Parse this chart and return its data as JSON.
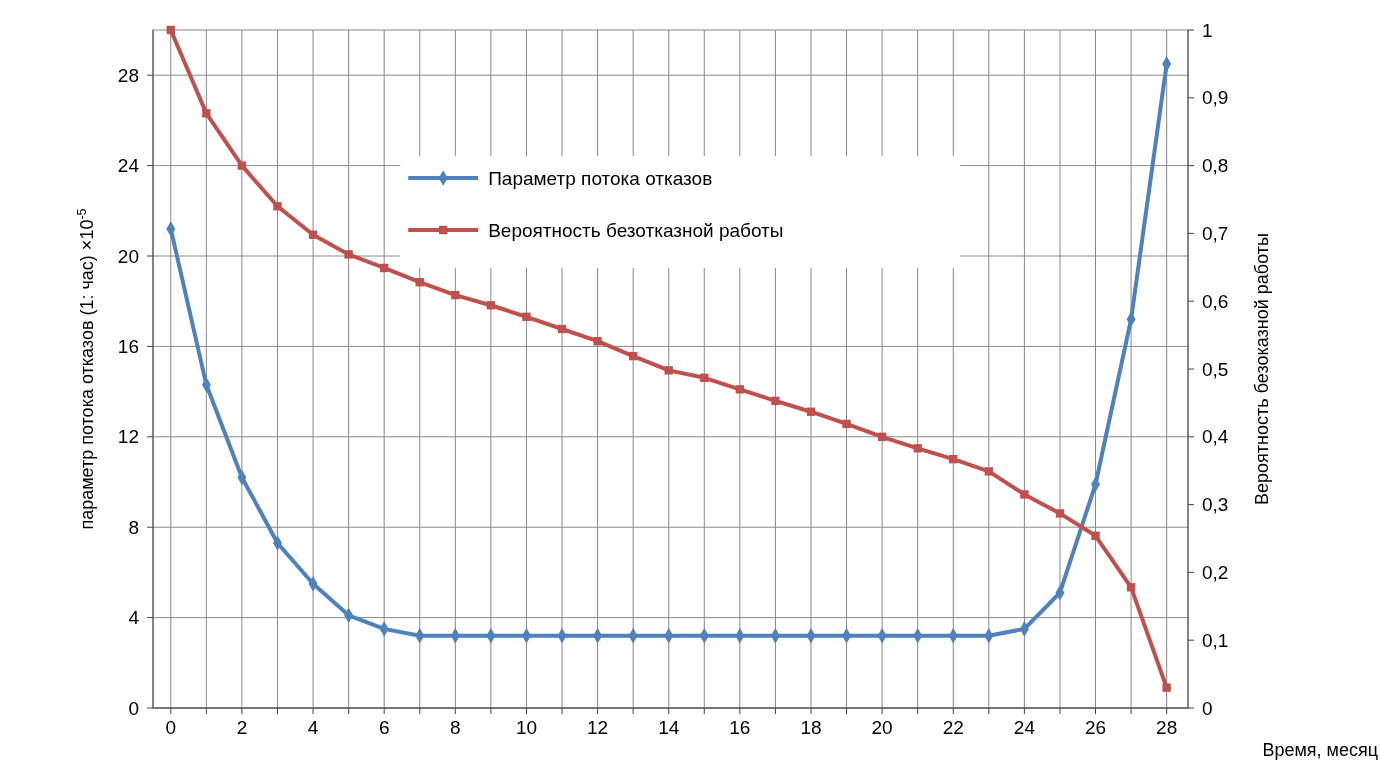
{
  "chart_data": {
    "type": "line",
    "xlabel": "Время, месяц",
    "ylabel": "параметр потока отказов (1: час) ×10$^{-5}$",
    "y2label": "Вероятность безоказной работы",
    "x": [
      0,
      1,
      2,
      3,
      4,
      5,
      6,
      7,
      8,
      9,
      10,
      11,
      12,
      13,
      14,
      15,
      16,
      17,
      18,
      19,
      20,
      21,
      22,
      23,
      24,
      25,
      26,
      27,
      28
    ],
    "series": [
      {
        "name": "Параметр потока отказов",
        "color": "#4f81bd",
        "marker": "diamond",
        "values": [
          21.2,
          14.3,
          10.2,
          7.3,
          5.5,
          4.1,
          3.5,
          3.2,
          3.2,
          3.2,
          3.2,
          3.2,
          3.2,
          3.2,
          3.2,
          3.2,
          3.2,
          3.2,
          3.2,
          3.2,
          3.2,
          3.2,
          3.2,
          3.2,
          3.5,
          5.1,
          9.9,
          17.2,
          28.5
        ]
      },
      {
        "name": "Вероятность безотказной работы",
        "color": "#c0504d",
        "marker": "square",
        "axis": "y2",
        "values": [
          1.0,
          0.877,
          0.8,
          0.74,
          0.698,
          0.669,
          0.649,
          0.628,
          0.609,
          0.594,
          0.577,
          0.559,
          0.541,
          0.519,
          0.498,
          0.487,
          0.47,
          0.453,
          0.437,
          0.419,
          0.4,
          0.383,
          0.367,
          0.349,
          0.315,
          0.287,
          0.254,
          0.178,
          0.03
        ]
      }
    ],
    "xlim": [
      -0.5,
      28.6
    ],
    "xticks": [
      0,
      {
        "value": 1,
        "label": null
      },
      2,
      {
        "value": 3,
        "label": null
      },
      4,
      {
        "value": 5,
        "label": null
      },
      6,
      {
        "value": 7,
        "label": null
      },
      8,
      {
        "value": 9,
        "label": null
      },
      10,
      {
        "value": 11,
        "label": null
      },
      12,
      {
        "value": 13,
        "label": null
      },
      14,
      {
        "value": 15,
        "label": null
      },
      16,
      {
        "value": 17,
        "label": null
      },
      18,
      {
        "value": 19,
        "label": null
      },
      20,
      {
        "value": 21,
        "label": null
      },
      22,
      {
        "value": 23,
        "label": null
      },
      24,
      {
        "value": 25,
        "label": null
      },
      26,
      {
        "value": 27,
        "label": null
      },
      28
    ],
    "ylim": [
      0,
      30
    ],
    "yticks": [
      0,
      4,
      8,
      12,
      16,
      20,
      24,
      28
    ],
    "y2lim": [
      0,
      1
    ],
    "y2ticks": [
      0,
      {
        "value": 0.1,
        "label": "0,1"
      },
      {
        "value": 0.2,
        "label": "0,2"
      },
      {
        "value": 0.3,
        "label": "0,3"
      },
      {
        "value": 0.4,
        "label": "0,4"
      },
      {
        "value": 0.5,
        "label": "0,5"
      },
      {
        "value": 0.6,
        "label": "0,6"
      },
      {
        "value": 0.7,
        "label": "0,7"
      },
      {
        "value": 0.8,
        "label": "0,8"
      },
      {
        "value": 0.9,
        "label": "0,9"
      },
      1
    ],
    "grid": true,
    "legend": "top",
    "line_style": "solid"
  }
}
